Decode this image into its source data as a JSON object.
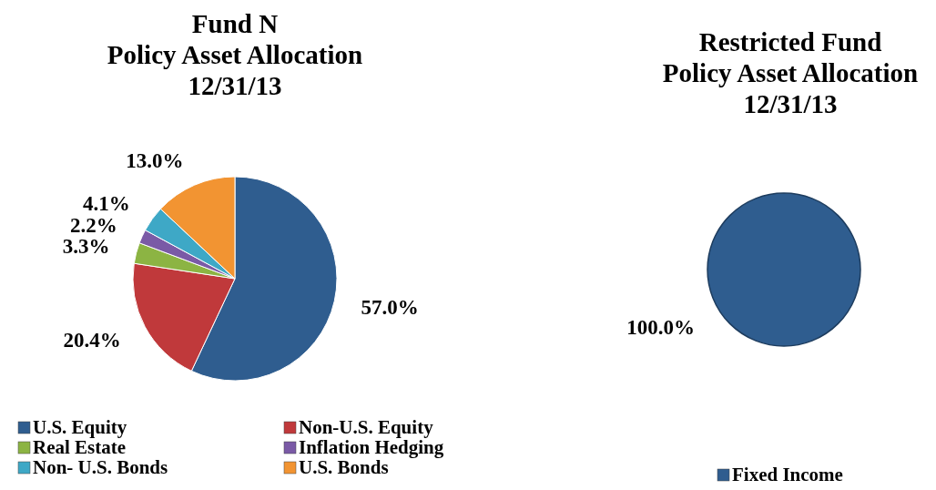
{
  "chart_data": [
    {
      "type": "pie",
      "title": "Fund N\nPolicy Asset Allocation\n12/31/13",
      "categories": [
        "U.S. Equity",
        "Non-U.S. Equity",
        "Real Estate",
        "Inflation Hedging",
        "Non- U.S. Bonds",
        "U.S. Bonds"
      ],
      "values": [
        57.0,
        20.4,
        3.3,
        2.2,
        4.1,
        13.0
      ],
      "value_labels": [
        "57.0%",
        "20.4%",
        "3.3%",
        "2.2%",
        "4.1%",
        "13.0%"
      ],
      "colors": [
        "#2f5d8f",
        "#c0393b",
        "#8cb443",
        "#7a5aa6",
        "#3ea8c6",
        "#f29432"
      ],
      "legend": "bottom"
    },
    {
      "type": "pie",
      "title": "Restricted Fund\nPolicy Asset Allocation\n12/31/13",
      "categories": [
        "Fixed Income"
      ],
      "values": [
        100.0
      ],
      "value_labels": [
        "100.0%"
      ],
      "colors": [
        "#2f5d8f"
      ],
      "legend": "bottom"
    }
  ]
}
